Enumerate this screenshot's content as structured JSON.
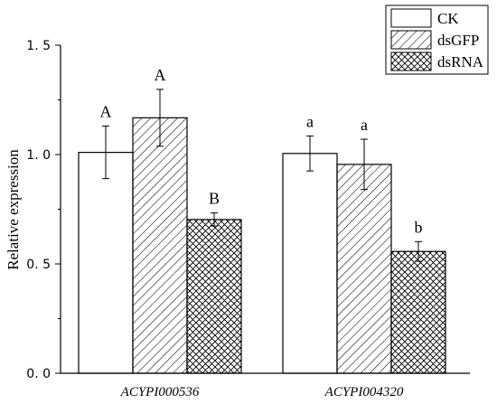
{
  "chart_data": {
    "type": "bar",
    "categories": [
      "ACYPI000536",
      "ACYPI004320"
    ],
    "series": [
      {
        "name": "CK",
        "values": [
          1.01,
          1.005
        ],
        "errors": [
          0.12,
          0.08
        ],
        "pattern": "none",
        "letters": [
          "A",
          "a"
        ]
      },
      {
        "name": "dsGFP",
        "values": [
          1.168,
          0.955
        ],
        "errors": [
          0.13,
          0.115
        ],
        "pattern": "diagonal",
        "letters": [
          "A",
          "a"
        ]
      },
      {
        "name": "dsRNA",
        "values": [
          0.703,
          0.557
        ],
        "errors": [
          0.03,
          0.045
        ],
        "pattern": "crosshatch",
        "letters": [
          "B",
          "b"
        ]
      }
    ],
    "ylabel": "Relative expression",
    "xlabel": "",
    "ylim": [
      0,
      1.5
    ],
    "yticks": [
      "0. 0",
      "0. 5",
      "1. 0",
      "1. 5"
    ],
    "legend_position": "top-right",
    "grid": false
  }
}
